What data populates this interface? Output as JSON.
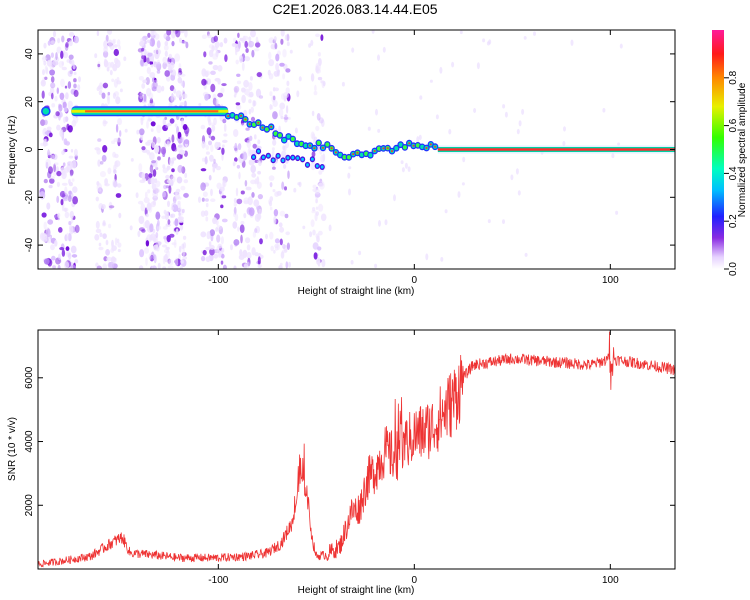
{
  "title": "C2E1.2026.083.14.44.E05",
  "colors": {
    "snr_line": "#ee3333",
    "axis": "#000000",
    "track": "#ff2a2a"
  },
  "chart_data": [
    {
      "type": "heatmap",
      "title": "C2E1.2026.083.14.44.E05",
      "xlabel": "Height of straight line (km)",
      "ylabel": "Frequency (Hz)",
      "xlim": [
        -192,
        133
      ],
      "ylim": [
        -50,
        50
      ],
      "xticks": [
        -100,
        0,
        100
      ],
      "xtick_labels": [
        "-100",
        "0",
        "100"
      ],
      "yticks": [
        -40,
        -20,
        0,
        20,
        40
      ],
      "ytick_labels": [
        "-40",
        "-20",
        "0",
        "20",
        "40"
      ],
      "colorbar": {
        "label": "Normalized spectral amplitude",
        "range": [
          0,
          1
        ],
        "ticks": [
          0.0,
          0.2,
          0.4,
          0.6,
          0.8
        ],
        "tick_labels": [
          "0.0",
          "0.2",
          "0.4",
          "0.6",
          "0.8"
        ]
      },
      "doppler_track": {
        "height_km": [
          -188,
          -175,
          -150,
          -125,
          -100,
          -92,
          -85,
          -78,
          -72,
          -66,
          -60,
          -54,
          -48,
          -42,
          -36,
          -30,
          -24,
          -18,
          -12,
          -6,
          0,
          6,
          12,
          20,
          40,
          70,
          100,
          133
        ],
        "frequency_hz": [
          16,
          16,
          16,
          16,
          16,
          14,
          12,
          10,
          8,
          5,
          2,
          0,
          2,
          0,
          -2,
          -3,
          -2,
          -1,
          0,
          1,
          2,
          2,
          1,
          0,
          0,
          0,
          0,
          0
        ]
      }
    },
    {
      "type": "line",
      "xlabel": "Height of straight line (km)",
      "ylabel": "SNR (10 * v/v)",
      "xlim": [
        -192,
        133
      ],
      "ylim": [
        0,
        7500
      ],
      "xticks": [
        -100,
        0,
        100
      ],
      "xtick_labels": [
        "-100",
        "0",
        "100"
      ],
      "yticks": [
        2000,
        4000,
        6000
      ],
      "ytick_labels": [
        "2000",
        "4000",
        "6000"
      ],
      "series": [
        {
          "name": "SNR",
          "x": [
            -192,
            -180,
            -165,
            -155,
            -149,
            -145,
            -135,
            -120,
            -100,
            -85,
            -75,
            -68,
            -62,
            -58,
            -55,
            -52,
            -50,
            -45,
            -38,
            -32,
            -28,
            -24,
            -20,
            -15,
            -10,
            -5,
            0,
            5,
            10,
            15,
            20,
            25,
            30,
            40,
            50,
            60,
            70,
            80,
            90,
            100,
            110,
            120,
            133
          ],
          "y": [
            150,
            250,
            400,
            800,
            1000,
            500,
            450,
            350,
            350,
            400,
            500,
            800,
            1500,
            3000,
            2500,
            900,
            400,
            450,
            700,
            1800,
            1900,
            2800,
            3100,
            3700,
            3500,
            3900,
            4200,
            4300,
            4500,
            4900,
            5300,
            6000,
            6400,
            6500,
            6600,
            6550,
            6500,
            6450,
            6400,
            6600,
            6500,
            6400,
            6250
          ]
        }
      ]
    }
  ]
}
